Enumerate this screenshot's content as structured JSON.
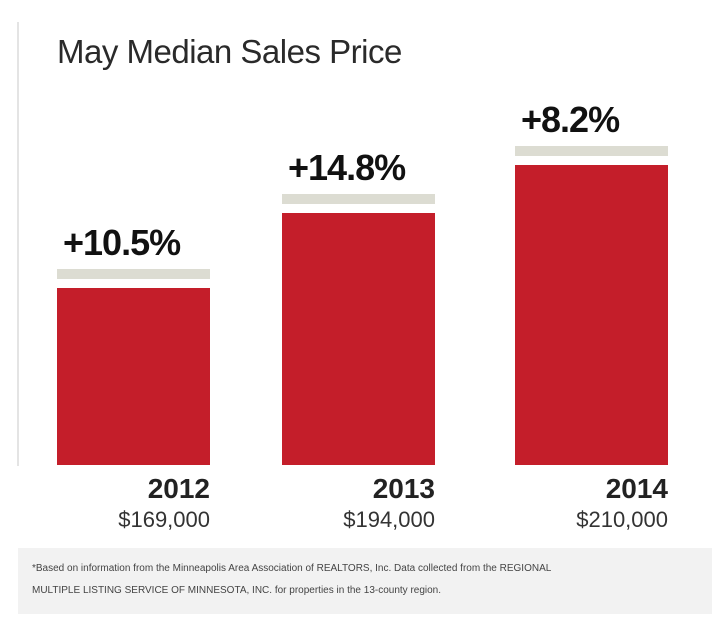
{
  "chart_data": {
    "type": "bar",
    "title": "May Median Sales Price",
    "categories": [
      "2012",
      "2013",
      "2014"
    ],
    "values": [
      169000,
      194000,
      210000
    ],
    "value_labels": [
      "$169,000",
      "$194,000",
      "$210,000"
    ],
    "change_labels": [
      "+10.5%",
      "+14.8%",
      "+8.2%"
    ],
    "xlabel": "",
    "ylabel": "",
    "ylim": [
      110000,
      220000
    ],
    "grid": false,
    "colors": {
      "bar": "#c41e2a",
      "cap": "#dcdcd2"
    }
  },
  "footnote": {
    "line1": "*Based on information from the Minneapolis Area Association of REALTORS, Inc. Data collected from the REGIONAL",
    "line2": "MULTIPLE LISTING SERVICE OF MINNESOTA, INC. for properties in the 13-county region."
  }
}
